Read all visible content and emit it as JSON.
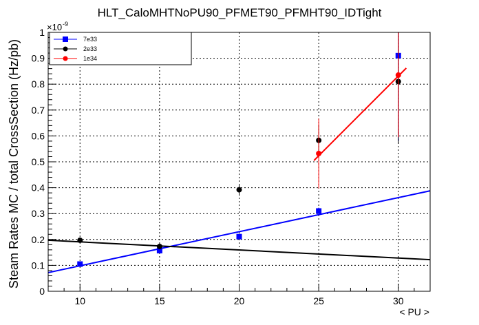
{
  "chart_data": {
    "type": "scatter",
    "title": "HLT_CaloMHTNoPU90_PFMET90_PFMHT90_IDTight",
    "xlabel": "< PU >",
    "ylabel": "Steam Rates MC / total CrossSection (Hz/pb)",
    "y_exponent_base": "×10",
    "y_exponent_power": "-9",
    "xlim": [
      8,
      32
    ],
    "ylim": [
      0,
      1
    ],
    "x_ticks": [
      10,
      15,
      20,
      25,
      30
    ],
    "x_tick_labels": [
      "10",
      "15",
      "20",
      "25",
      "30"
    ],
    "y_ticks": [
      0,
      0.1,
      0.2,
      0.3,
      0.4,
      0.5,
      0.6,
      0.7,
      0.8,
      0.9,
      1
    ],
    "y_tick_labels": [
      "0",
      "0.1",
      "0.2",
      "0.3",
      "0.4",
      "0.5",
      "0.6",
      "0.7",
      "0.8",
      "0.9",
      "1"
    ],
    "grid": true,
    "legend_position": "top-left",
    "series": [
      {
        "name": "7e33",
        "color": "#0000ff",
        "marker": "square",
        "points": [
          {
            "x": 10,
            "y": 0.105,
            "err": 0.006
          },
          {
            "x": 15,
            "y": 0.157,
            "err": 0.008
          },
          {
            "x": 20,
            "y": 0.211,
            "err": 0.01
          },
          {
            "x": 25,
            "y": 0.31,
            "err": 0.013
          },
          {
            "x": 30,
            "y": 0.91,
            "err": 0.33
          }
        ],
        "fit": {
          "x1": 8,
          "y1": 0.072,
          "x2": 32,
          "y2": 0.388
        }
      },
      {
        "name": "2e33",
        "color": "#000000",
        "marker": "circle",
        "points": [
          {
            "x": 10,
            "y": 0.197,
            "err": 0.006
          },
          {
            "x": 15,
            "y": 0.173,
            "err": 0.008
          },
          {
            "x": 20,
            "y": 0.392,
            "err": 0.023
          },
          {
            "x": 25,
            "y": 0.583,
            "err": 0.06
          },
          {
            "x": 30,
            "y": 0.81,
            "err": 0.24
          }
        ],
        "fit": {
          "x1": 8,
          "y1": 0.197,
          "x2": 32,
          "y2": 0.122
        }
      },
      {
        "name": "1e34",
        "color": "#ff0000",
        "marker": "circle",
        "points": [
          {
            "x": 25,
            "y": 0.532,
            "err": 0.135
          },
          {
            "x": 30,
            "y": 0.835,
            "err": 0.24
          }
        ],
        "fit": {
          "x1": 24.7,
          "y1": 0.505,
          "x2": 30.5,
          "y2": 0.862
        }
      }
    ]
  }
}
